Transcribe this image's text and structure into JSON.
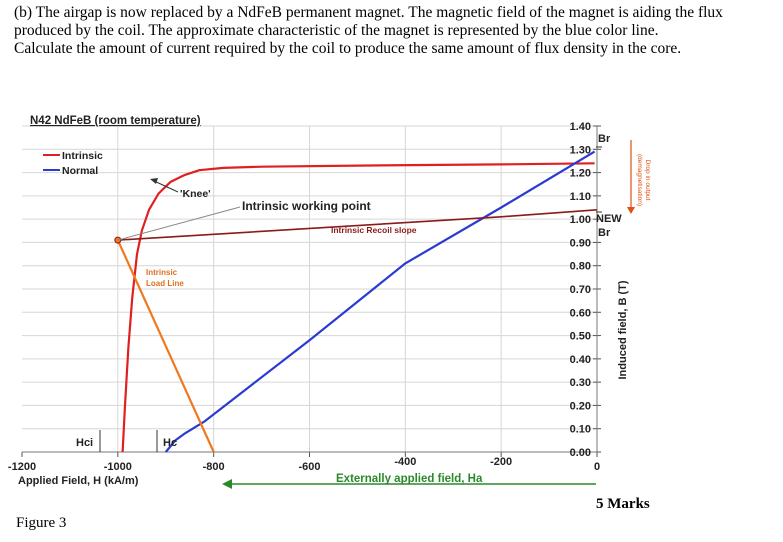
{
  "question": {
    "text": "(b) The airgap is now replaced by a NdFeB permanent magnet. The magnetic field of the magnet is aiding the flux produced by the coil. The approximate characteristic of the magnet is represented by the blue color line.",
    "task": "Calculate the amount of current required by the coil to produce the same amount of flux density in the core."
  },
  "marks": "5 Marks",
  "figure_caption": "Figure 3",
  "chart_data": {
    "type": "line",
    "title": "N42 NdFeB (room temperature)",
    "xlabel": "Applied Field, H (kA/m)",
    "ylabel": "Induced field, B (T)",
    "xlim": [
      -1200,
      0
    ],
    "ylim": [
      0,
      1.4
    ],
    "x_ticks": [
      "-1200",
      "-1000",
      "-800",
      "-600",
      "-400",
      "-200",
      "0"
    ],
    "y_ticks": [
      "1.40",
      "1.30",
      "1.20",
      "1.10",
      "1.00",
      "0.90",
      "0.80",
      "0.70",
      "0.60",
      "0.50",
      "0.40",
      "0.30",
      "0.20",
      "0.10",
      "0.00"
    ],
    "legend": [
      "Intrinsic",
      "Normal"
    ],
    "series": [
      {
        "name": "Intrinsic",
        "color": "#e02020",
        "x": [
          -990,
          -985,
          -978,
          -970,
          -960,
          -950,
          -935,
          -915,
          -890,
          -860,
          -830,
          -780,
          -700,
          -500,
          -200,
          -5
        ],
        "y": [
          0.0,
          0.2,
          0.45,
          0.66,
          0.85,
          0.95,
          1.04,
          1.11,
          1.16,
          1.19,
          1.21,
          1.22,
          1.225,
          1.23,
          1.235,
          1.24
        ]
      },
      {
        "name": "Normal",
        "color": "#2b3bd0",
        "x": [
          -900,
          -880,
          -860,
          -820,
          -600,
          -400,
          -200,
          -5
        ],
        "y": [
          0.0,
          0.05,
          0.08,
          0.13,
          0.48,
          0.81,
          1.05,
          1.29
        ]
      },
      {
        "name": "Intrinsic Recoil slope",
        "color": "#8b1a1a",
        "x": [
          -1000,
          -200,
          0
        ],
        "y": [
          0.91,
          1.01,
          1.04
        ]
      },
      {
        "name": "Intrinsic Load Line",
        "color": "#f07820",
        "x": [
          -1000,
          -800
        ],
        "y": [
          0.91,
          0.0
        ]
      }
    ],
    "annotations": {
      "knee": "'Knee'",
      "working_point": "Intrinsic working point",
      "recoil": "Intrinsic Recoil slope",
      "load_line_1": "Intrinsic",
      "load_line_2": "Load Line",
      "hci": "Hci",
      "hc": "Hc",
      "br": "Br",
      "new": "NEW",
      "br_new": "Br",
      "external": "Externally applied field, Ha",
      "drop_1": "Drop in output",
      "drop_2": "(demagnetisation)"
    }
  }
}
